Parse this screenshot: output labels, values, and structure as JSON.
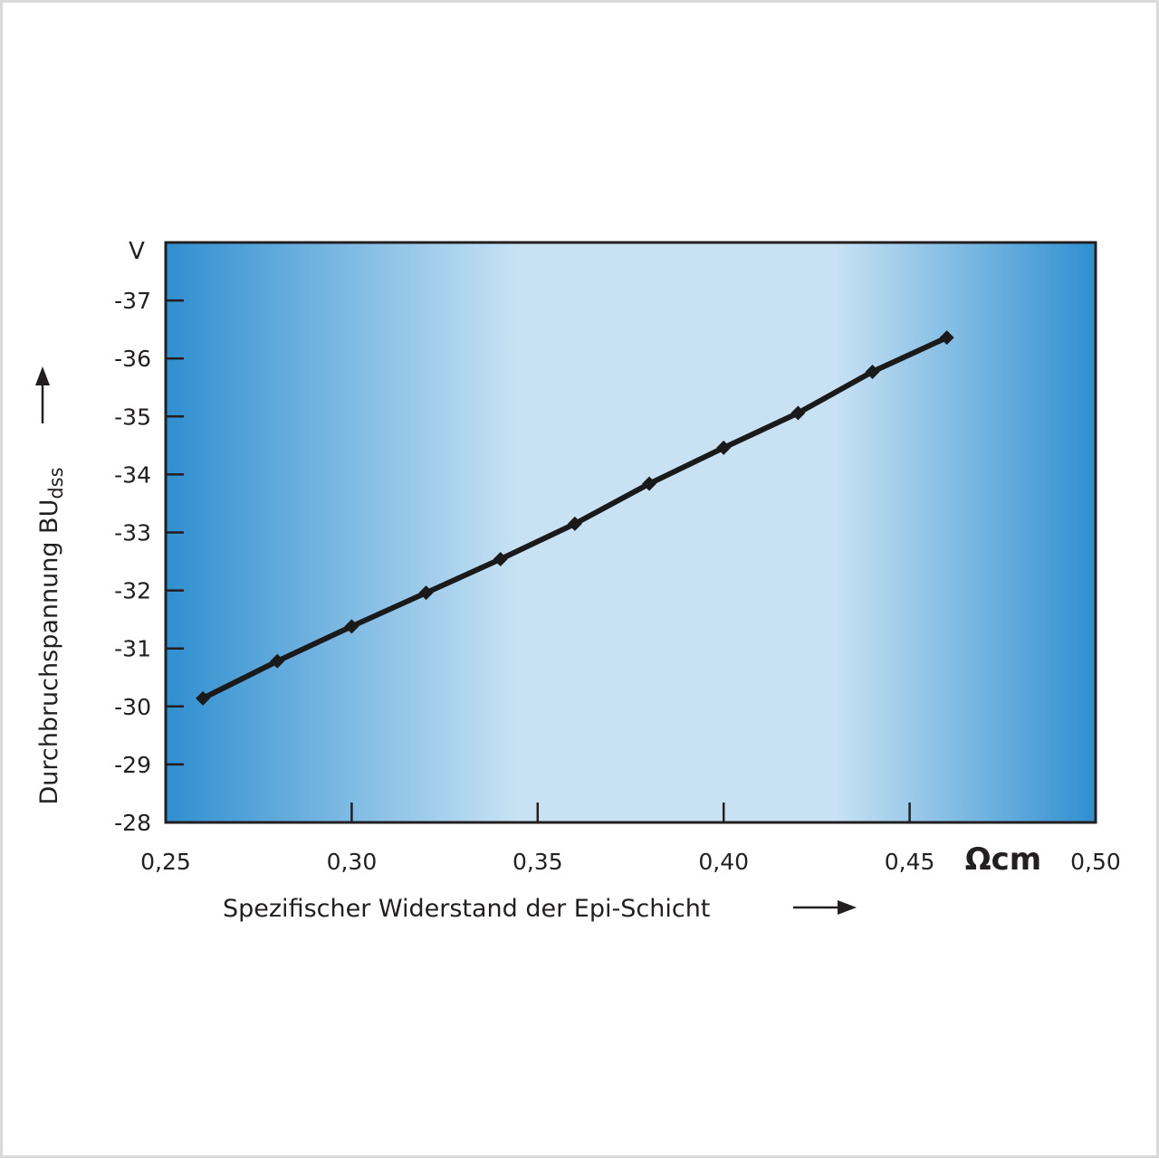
{
  "chart_data": {
    "type": "line",
    "title": "",
    "xlabel": "Spezifischer Widerstand der Epi-Schicht",
    "x_unit": "Ωcm",
    "ylabel_main": "Durchbruchspannung BU",
    "ylabel_sub": "dss",
    "y_unit": "V",
    "xlim": [
      0.25,
      0.5
    ],
    "ylim": [
      -28,
      -38
    ],
    "x_ticks": [
      0.25,
      0.3,
      0.35,
      0.4,
      0.45,
      0.5
    ],
    "x_tick_labels": [
      "0,25",
      "0,30",
      "0,35",
      "0,40",
      "0,45",
      "0,50"
    ],
    "y_ticks": [
      -28,
      -29,
      -30,
      -31,
      -32,
      -33,
      -34,
      -35,
      -36,
      -37
    ],
    "y_tick_labels": [
      "-28",
      "-29",
      "-30",
      "-31",
      "-32",
      "-33",
      "-34",
      "-35",
      "-36",
      "-37"
    ],
    "grid": false,
    "series": [
      {
        "x": [
          0.26,
          0.28,
          0.3,
          0.32,
          0.34,
          0.36,
          0.38,
          0.4,
          0.42,
          0.44,
          0.46
        ],
        "y": [
          -30.14,
          -30.78,
          -31.38,
          -31.96,
          -32.54,
          -33.15,
          -33.84,
          -34.46,
          -35.06,
          -35.77,
          -36.36
        ]
      }
    ],
    "colors": {
      "background_edge": "#2f8fd0",
      "background_center": "#c8e2f4",
      "line": "#1a1a1a"
    }
  }
}
